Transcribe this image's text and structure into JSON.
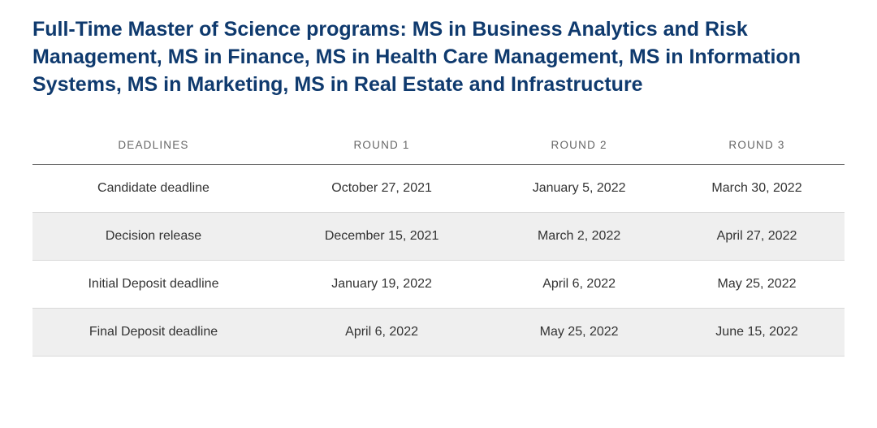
{
  "title": "Full-Time Master of Science programs: MS in Business Analytics and Risk Management, MS in Finance, MS in Health Care Management, MS in Information Systems, MS in Marketing, MS in Real Estate and Infrastructure",
  "table": {
    "type": "table",
    "columns": [
      "DEADLINES",
      "ROUND 1",
      "ROUND 2",
      "ROUND 3"
    ],
    "rows": [
      [
        "Candidate deadline",
        "October 27, 2021",
        "January 5, 2022",
        "March 30, 2022"
      ],
      [
        "Decision release",
        "December 15, 2021",
        "March 2, 2022",
        "April 27, 2022"
      ],
      [
        "Initial Deposit deadline",
        "January 19, 2022",
        "April 6, 2022",
        "May 25, 2022"
      ],
      [
        "Final Deposit deadline",
        "April 6, 2022",
        "May 25, 2022",
        "June 15, 2022"
      ]
    ],
    "colors": {
      "title_color": "#0f3a6e",
      "header_text_color": "#666666",
      "cell_text_color": "#333333",
      "row_alt_background": "#efefef",
      "row_background": "#ffffff",
      "header_border_color": "#6b6b6b",
      "row_border_color": "#d9d9d9",
      "page_background": "#ffffff"
    },
    "typography": {
      "title_fontsize": 25,
      "title_weight": 700,
      "header_fontsize": 13.5,
      "header_letter_spacing": 1.2,
      "cell_fontsize": 16
    },
    "column_alignment": [
      "center",
      "center",
      "center",
      "center"
    ]
  }
}
